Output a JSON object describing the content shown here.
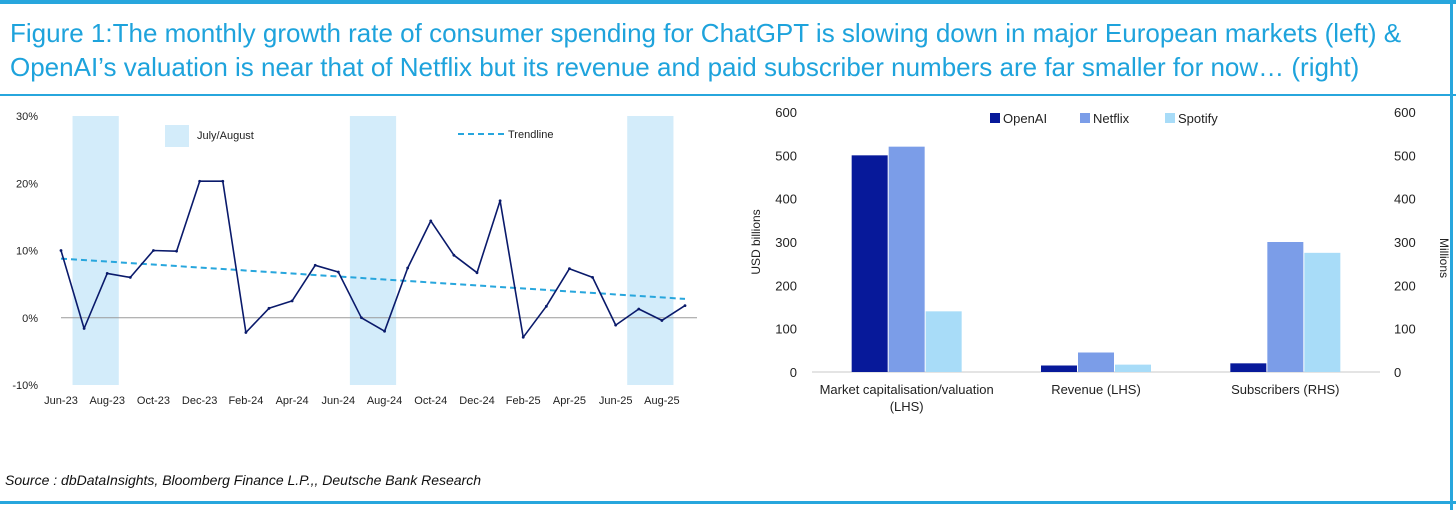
{
  "title": "Figure 1:The monthly growth rate of consumer spending for ChatGPT is slowing down in major European markets (left) & OpenAI’s valuation is near that of Netflix but its revenue and paid subscriber numbers are far smaller for now… (right)",
  "source": "Source : dbDataInsights, Bloomberg Finance L.P.,, Deutsche Bank Research",
  "colors": {
    "accent": "#27a6dd",
    "line": "#0a1a6b",
    "trend": "#27a6dd",
    "shade": "#d3ecfa",
    "openai": "#07199a",
    "netflix": "#7b9de8",
    "spotify": "#a8dcf8"
  },
  "chart_data": [
    {
      "type": "line",
      "legend": {
        "shade_label": "July/August",
        "trend_label": "Trendline"
      },
      "x": [
        "Jun-23",
        "Jul-23",
        "Aug-23",
        "Sep-23",
        "Oct-23",
        "Nov-23",
        "Dec-23",
        "Jan-24",
        "Feb-24",
        "Mar-24",
        "Apr-24",
        "May-24",
        "Jun-24",
        "Jul-24",
        "Aug-24",
        "Sep-24",
        "Oct-24",
        "Nov-24",
        "Dec-24",
        "Jan-25",
        "Feb-25",
        "Mar-25",
        "Apr-25",
        "May-25",
        "Jun-25",
        "Jul-25",
        "Aug-25",
        "Sep-25"
      ],
      "x_tick_labels": [
        "Jun-23",
        "Aug-23",
        "Oct-23",
        "Dec-23",
        "Feb-24",
        "Apr-24",
        "Jun-24",
        "Aug-24",
        "Oct-24",
        "Dec-24",
        "Feb-25",
        "Apr-25",
        "Jun-25",
        "Aug-25"
      ],
      "series": [
        {
          "values": [
            10,
            -1.6,
            6.6,
            6.0,
            10.0,
            9.9,
            20.3,
            20.3,
            -2.2,
            1.4,
            2.5,
            7.8,
            6.8,
            0,
            -2.0,
            7.4,
            14.4,
            9.3,
            6.7,
            17.4,
            -2.9,
            1.7,
            7.3,
            6.0,
            -1.1,
            1.3,
            -0.4,
            1.8
          ]
        }
      ],
      "trendline": {
        "start": 8.8,
        "end": 2.8
      },
      "shaded_months": [
        [
          "Jul-23",
          "Aug-23"
        ],
        [
          "Jul-24",
          "Aug-24"
        ],
        [
          "Jul-25",
          "Aug-25"
        ]
      ],
      "y_tick_labels": [
        "-10%",
        "0%",
        "10%",
        "20%",
        "30%"
      ],
      "ylim": [
        -10,
        30
      ]
    },
    {
      "type": "bar",
      "categories": [
        "Market capitalisation/valuation (LHS)",
        "Revenue (LHS)",
        "Subscribers (RHS)"
      ],
      "category_lines": [
        [
          "Market capitalisation/valuation",
          "(LHS)"
        ],
        [
          "Revenue (LHS)"
        ],
        [
          "Subscribers (RHS)"
        ]
      ],
      "series": [
        {
          "name": "OpenAI",
          "values": [
            500,
            15,
            20
          ]
        },
        {
          "name": "Netflix",
          "values": [
            520,
            45,
            300
          ]
        },
        {
          "name": "Spotify",
          "values": [
            140,
            17,
            275
          ]
        }
      ],
      "ylabel": "USD billions",
      "y2label": "Millions",
      "ylim": [
        0,
        600
      ],
      "y2lim": [
        0,
        600
      ],
      "y_tick_labels": [
        "0",
        "100",
        "200",
        "300",
        "400",
        "500",
        "600"
      ],
      "y2_tick_labels": [
        "0",
        "100",
        "200",
        "300",
        "400",
        "500",
        "600"
      ],
      "legend_position": "top-center"
    }
  ]
}
